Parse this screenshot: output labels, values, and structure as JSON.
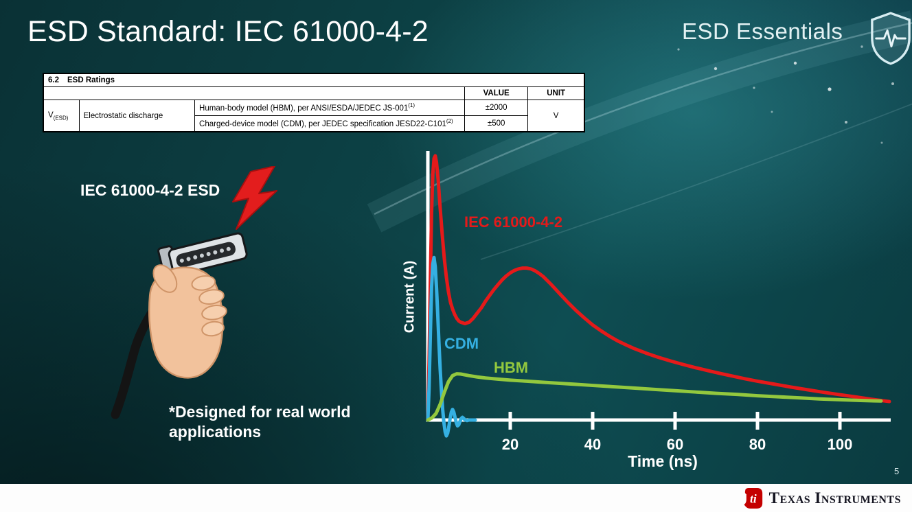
{
  "slide": {
    "title": "ESD Standard: IEC 61000-4-2",
    "brand": "ESD Essentials",
    "page_number": "5",
    "footer_logo_text": "Texas Instruments"
  },
  "ratings_table": {
    "section_number": "6.2",
    "section_title": "ESD Ratings",
    "headers": {
      "value": "VALUE",
      "unit": "UNIT"
    },
    "symbol": {
      "base": "V",
      "sub": "(ESD)"
    },
    "parameter": "Electrostatic discharge",
    "rows": [
      {
        "desc": "Human-body model (HBM), per ANSI/ESDA/JEDEC JS-001",
        "sup": "(1)",
        "value": "±2000"
      },
      {
        "desc": "Charged-device model (CDM), per JEDEC specification JESD22-C101",
        "sup": "(2)",
        "value": "±500"
      }
    ],
    "unit": "V"
  },
  "figure": {
    "label": "IEC 61000-4-2 ESD",
    "footnote": "*Designed for real world applications"
  },
  "chart_data": {
    "type": "line",
    "title": "",
    "xlabel": "Time (ns)",
    "ylabel": "Current (A)",
    "x_ticks": [
      20,
      40,
      60,
      80,
      100
    ],
    "xlim": [
      0,
      112
    ],
    "ylim": [
      -0.08,
      1.05
    ],
    "grid": false,
    "legend_position": "inline-labels",
    "series": [
      {
        "name": "IEC 61000-4-2",
        "color": "#e51a1a",
        "x": [
          0,
          0.3,
          0.6,
          0.9,
          1.2,
          1.5,
          1.8,
          2.1,
          2.5,
          3,
          3.5,
          4,
          4.5,
          5,
          5.5,
          6,
          6.5,
          7,
          7.5,
          8,
          9,
          10,
          11,
          12,
          13,
          14,
          15,
          16,
          17,
          18,
          19,
          20,
          21,
          22,
          23,
          24,
          25,
          26,
          27,
          28,
          30,
          32,
          34,
          36,
          38,
          40,
          42,
          44,
          46,
          48,
          50,
          53,
          56,
          59,
          62,
          65,
          68,
          71,
          74,
          77,
          80,
          84,
          88,
          92,
          96,
          100,
          104,
          108,
          112
        ],
        "y": [
          0,
          0.22,
          0.52,
          0.78,
          0.93,
          0.99,
          1.0,
          0.975,
          0.91,
          0.8,
          0.7,
          0.61,
          0.54,
          0.485,
          0.445,
          0.42,
          0.4,
          0.385,
          0.375,
          0.37,
          0.365,
          0.37,
          0.385,
          0.405,
          0.425,
          0.45,
          0.472,
          0.493,
          0.512,
          0.53,
          0.545,
          0.557,
          0.566,
          0.572,
          0.575,
          0.575,
          0.572,
          0.565,
          0.555,
          0.543,
          0.512,
          0.478,
          0.445,
          0.414,
          0.386,
          0.36,
          0.338,
          0.318,
          0.3,
          0.285,
          0.271,
          0.253,
          0.237,
          0.223,
          0.21,
          0.198,
          0.187,
          0.176,
          0.166,
          0.156,
          0.147,
          0.136,
          0.125,
          0.115,
          0.105,
          0.096,
          0.087,
          0.078,
          0.07
        ]
      },
      {
        "name": "CDM",
        "color": "#35b0e2",
        "x": [
          0,
          0.3,
          0.6,
          0.9,
          1.2,
          1.5,
          1.8,
          2.1,
          2.4,
          2.7,
          3,
          3.3,
          3.6,
          3.9,
          4.2,
          4.5,
          4.8,
          5.1,
          5.4,
          5.7,
          6,
          6.3,
          6.6,
          6.9,
          7.2,
          7.5,
          7.8,
          8.1,
          8.4,
          8.7,
          9,
          9.5,
          10,
          11,
          11.5
        ],
        "y": [
          0,
          0.12,
          0.32,
          0.5,
          0.59,
          0.615,
          0.58,
          0.5,
          0.4,
          0.29,
          0.19,
          0.11,
          0.04,
          -0.01,
          -0.045,
          -0.06,
          -0.05,
          -0.025,
          0.005,
          0.03,
          0.04,
          0.03,
          0.01,
          -0.01,
          -0.022,
          -0.018,
          -0.005,
          0.006,
          0.01,
          0.006,
          0.001,
          -0.002,
          0,
          0,
          0
        ]
      },
      {
        "name": "HBM",
        "color": "#93c83e",
        "x": [
          0,
          1,
          2,
          3,
          4,
          5,
          6,
          7,
          8,
          9,
          10,
          12,
          14,
          17,
          20,
          24,
          28,
          32,
          36,
          40,
          45,
          50,
          55,
          60,
          65,
          70,
          75,
          80,
          85,
          90,
          95,
          100,
          105,
          110
        ],
        "y": [
          0,
          0.008,
          0.025,
          0.06,
          0.105,
          0.145,
          0.168,
          0.175,
          0.174,
          0.171,
          0.168,
          0.163,
          0.159,
          0.155,
          0.151,
          0.147,
          0.143,
          0.139,
          0.135,
          0.131,
          0.126,
          0.121,
          0.116,
          0.111,
          0.106,
          0.101,
          0.097,
          0.092,
          0.088,
          0.084,
          0.08,
          0.077,
          0.074,
          0.072
        ]
      }
    ]
  }
}
